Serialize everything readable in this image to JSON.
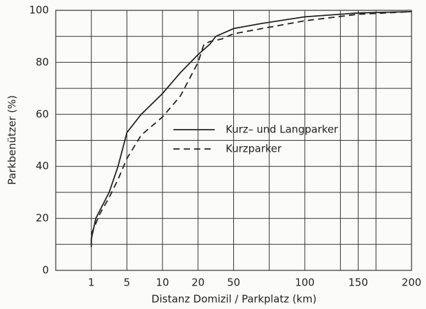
{
  "chart_data": {
    "type": "line",
    "xlabel": "Distanz  Domizil / Parkplatz (km)",
    "ylabel": "Parkbenützer (%)",
    "xlim": [
      0,
      200
    ],
    "xticks": [
      1,
      5,
      10,
      20,
      50,
      100,
      150,
      200
    ],
    "ylim": [
      0,
      100
    ],
    "yticks": [
      0,
      20,
      40,
      60,
      80,
      100
    ],
    "grid": true,
    "legend": "center",
    "series": [
      {
        "name": "Kurz– und Langparker",
        "color": "#222",
        "dash": "solid",
        "x": [
          1,
          1,
          1.5,
          3,
          4,
          5,
          7,
          10,
          15,
          20,
          25,
          30,
          35,
          40,
          50,
          70,
          100,
          150,
          200
        ],
        "values": [
          9,
          12,
          20,
          30,
          40,
          53,
          60,
          68,
          76,
          83,
          85,
          87,
          90,
          91,
          93,
          95,
          97.5,
          99,
          99.5
        ]
      },
      {
        "name": "Kurzparker",
        "color": "#222",
        "dash": "dashed",
        "x": [
          1,
          1,
          2,
          3,
          4,
          5,
          7,
          10,
          15,
          20,
          25,
          30,
          40,
          50,
          70,
          100,
          150,
          200
        ],
        "values": [
          10,
          14,
          22,
          28,
          35,
          43,
          52,
          59,
          67,
          80,
          87,
          88,
          89,
          91,
          93,
          96,
          98.5,
          99.5
        ]
      }
    ]
  }
}
